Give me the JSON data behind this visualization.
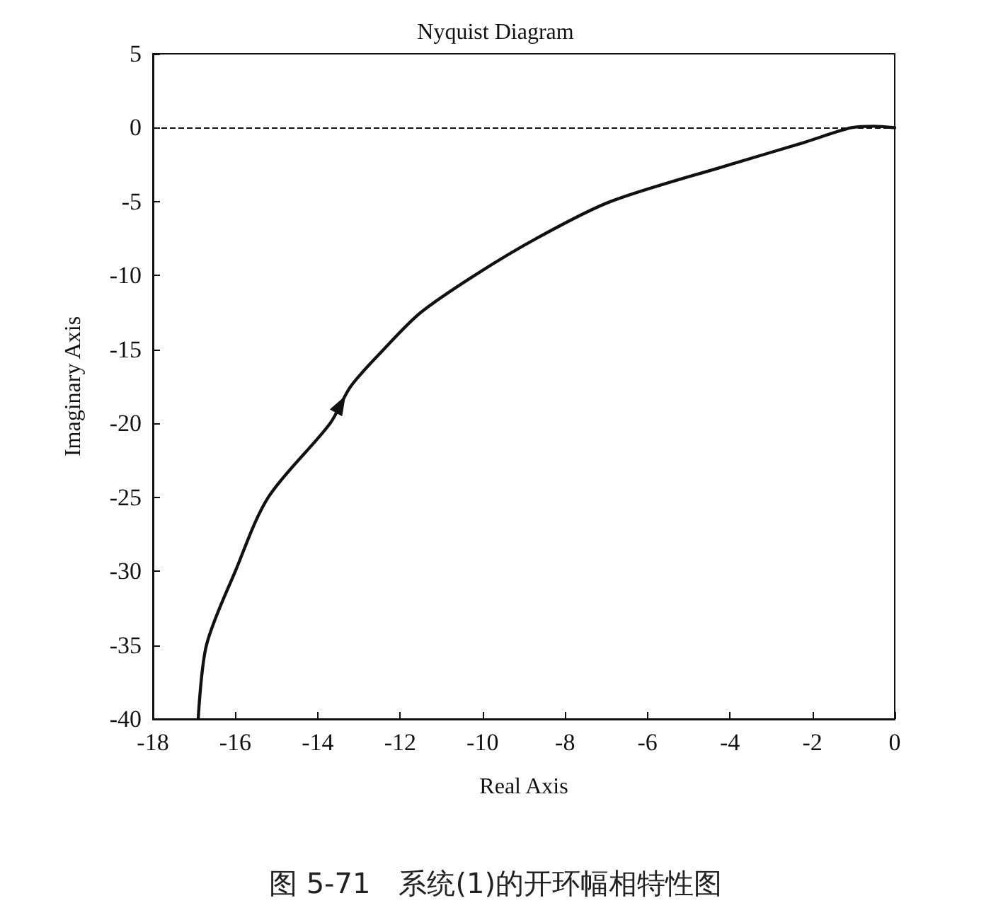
{
  "chart_data": {
    "type": "line",
    "title": "Nyquist Diagram",
    "xlabel": "Real Axis",
    "ylabel": "Imaginary Axis",
    "x": [
      -16.9,
      -16.7,
      -16.0,
      -15.2,
      -13.7,
      -13.2,
      -12.4,
      -11.5,
      -10.2,
      -8.7,
      -6.9,
      -4.0,
      -2.2,
      -1.05,
      -0.5,
      0
    ],
    "series": [
      {
        "color": "#111111",
        "values": [
          -40,
          -35,
          -30,
          -25,
          -20,
          -17.5,
          -15,
          -12.5,
          -10,
          -7.5,
          -5,
          -2.5,
          -1,
          0,
          0.1,
          0
        ]
      }
    ],
    "xlim": [
      -18,
      0
    ],
    "xticks": [
      -18,
      -16,
      -14,
      -12,
      -10,
      -8,
      -6,
      -4,
      -2,
      0
    ],
    "ylim": [
      -40,
      5
    ],
    "yticks": [
      -40,
      -35,
      -30,
      -25,
      -20,
      -15,
      -10,
      -5,
      0,
      5
    ],
    "ref_lines": [
      {
        "axis": "y",
        "value": 0,
        "line_style": "dashed",
        "color": "#111111"
      }
    ],
    "grid": false,
    "marker": "none",
    "line_style": "solid",
    "annotations": [
      "图 5-71　系统(1)的开环幅相特性图"
    ]
  }
}
